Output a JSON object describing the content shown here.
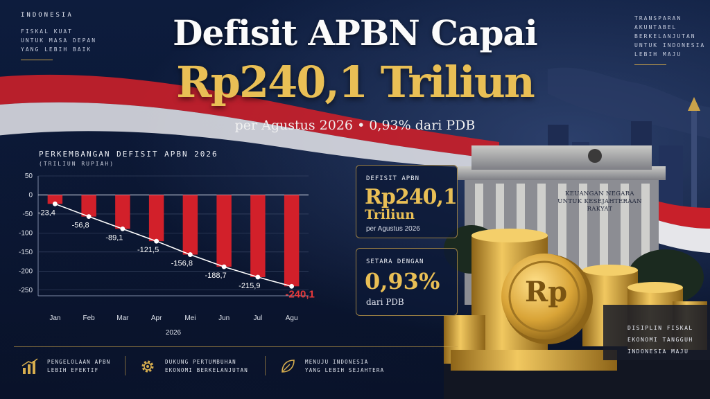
{
  "header": {
    "title_line1": "Defisit APBN Capai",
    "title_line2": "Rp240,1 Triliun",
    "subtitle": "per Agustus 2026 • 0,93% dari PDB"
  },
  "corner_left": {
    "heading": "INDONESIA",
    "lines": [
      "FISKAL KUAT",
      "UNTUK MASA DEPAN",
      "YANG LEBIH BAIK"
    ]
  },
  "corner_right": {
    "lines": [
      "TRANSPARAN",
      "AKUNTABEL",
      "BERKELANJUTAN",
      "UNTUK INDONESIA",
      "LEBIH MAJU"
    ]
  },
  "chart_panel": {
    "title": "PERKEMBANGAN DEFISIT APBN 2026",
    "unit": "(TRILIUN RUPIAH)"
  },
  "chart_data": {
    "type": "bar",
    "title": "PERKEMBANGAN DEFISIT APBN 2026",
    "ylabel": "(TRILIUN RUPIAH)",
    "xlabel": "2026",
    "categories": [
      "Jan",
      "Feb",
      "Mar",
      "Apr",
      "Mei",
      "Jun",
      "Jul",
      "Agu"
    ],
    "values": [
      -23.4,
      -56.8,
      -89.1,
      -121.5,
      -156.8,
      -188.7,
      -215.9,
      -240.1
    ],
    "value_labels": [
      "-23,4",
      "-56,8",
      "-89,1",
      "-121,5",
      "-156,8",
      "-188,7",
      "-215,9",
      "-240,1"
    ],
    "yticks": [
      50,
      0,
      -50,
      -100,
      -150,
      -200,
      -250
    ],
    "ylim": [
      -265,
      50
    ],
    "grid": true,
    "overlay_line": true,
    "bar_color": "#d2202a",
    "highlight_label_color": "#e8393a"
  },
  "info_boxes": {
    "deficit": {
      "label": "DEFISIT APBN",
      "value": "Rp240,1",
      "unit": "Triliun",
      "note": "per Agustus 2026"
    },
    "gdp": {
      "label": "SETARA DENGAN",
      "value": "0,93%",
      "note": "dari PDB"
    }
  },
  "building": {
    "inscription_line1": "KEUANGAN NEGARA",
    "inscription_line2": "UNTUK KESEJAHTERAAN RAKYAT"
  },
  "coin": {
    "symbol": "Rp"
  },
  "tagline": [
    "DISIPLIN FISKAL",
    "EKONOMI TANGGUH",
    "INDONESIA MAJU"
  ],
  "features": [
    {
      "icon": "bar-chart-icon",
      "text": "PENGELOLAAN APBN\nLEBIH EFEKTIF"
    },
    {
      "icon": "gear-icon",
      "text": "DUKUNG PERTUMBUHAN\nEKONOMI BERKELANJUTAN"
    },
    {
      "icon": "leaf-icon",
      "text": "MENUJU INDONESIA\nYANG LEBIH SEJAHTERA"
    }
  ],
  "colors": {
    "gold": "#e9bf55",
    "navy": "#0b1733",
    "red": "#d2202a"
  }
}
